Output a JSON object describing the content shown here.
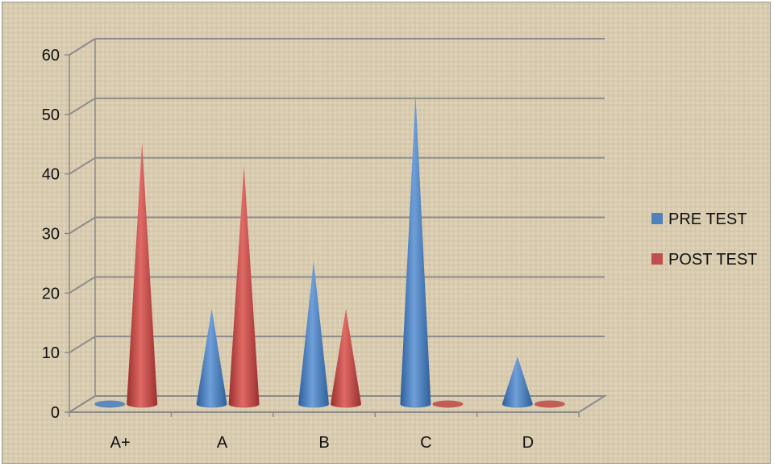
{
  "chart_data": {
    "type": "bar",
    "bar_shape": "cone-3d",
    "categories": [
      "A+",
      "A",
      "B",
      "C",
      "D"
    ],
    "series": [
      {
        "name": "PRE TEST",
        "values": [
          0,
          16,
          24,
          52,
          8
        ]
      },
      {
        "name": "POST TEST",
        "values": [
          44,
          40,
          16,
          0,
          0
        ]
      }
    ],
    "ylim": [
      0,
      60
    ],
    "yticks": [
      0,
      10,
      20,
      30,
      40,
      50,
      60
    ],
    "grid": true,
    "legend_position": "right",
    "colors": {
      "PRE TEST": "#4f81bd",
      "POST TEST": "#c0504d",
      "background": "#d9ccb0",
      "gridline": "#8c8c8c"
    }
  }
}
